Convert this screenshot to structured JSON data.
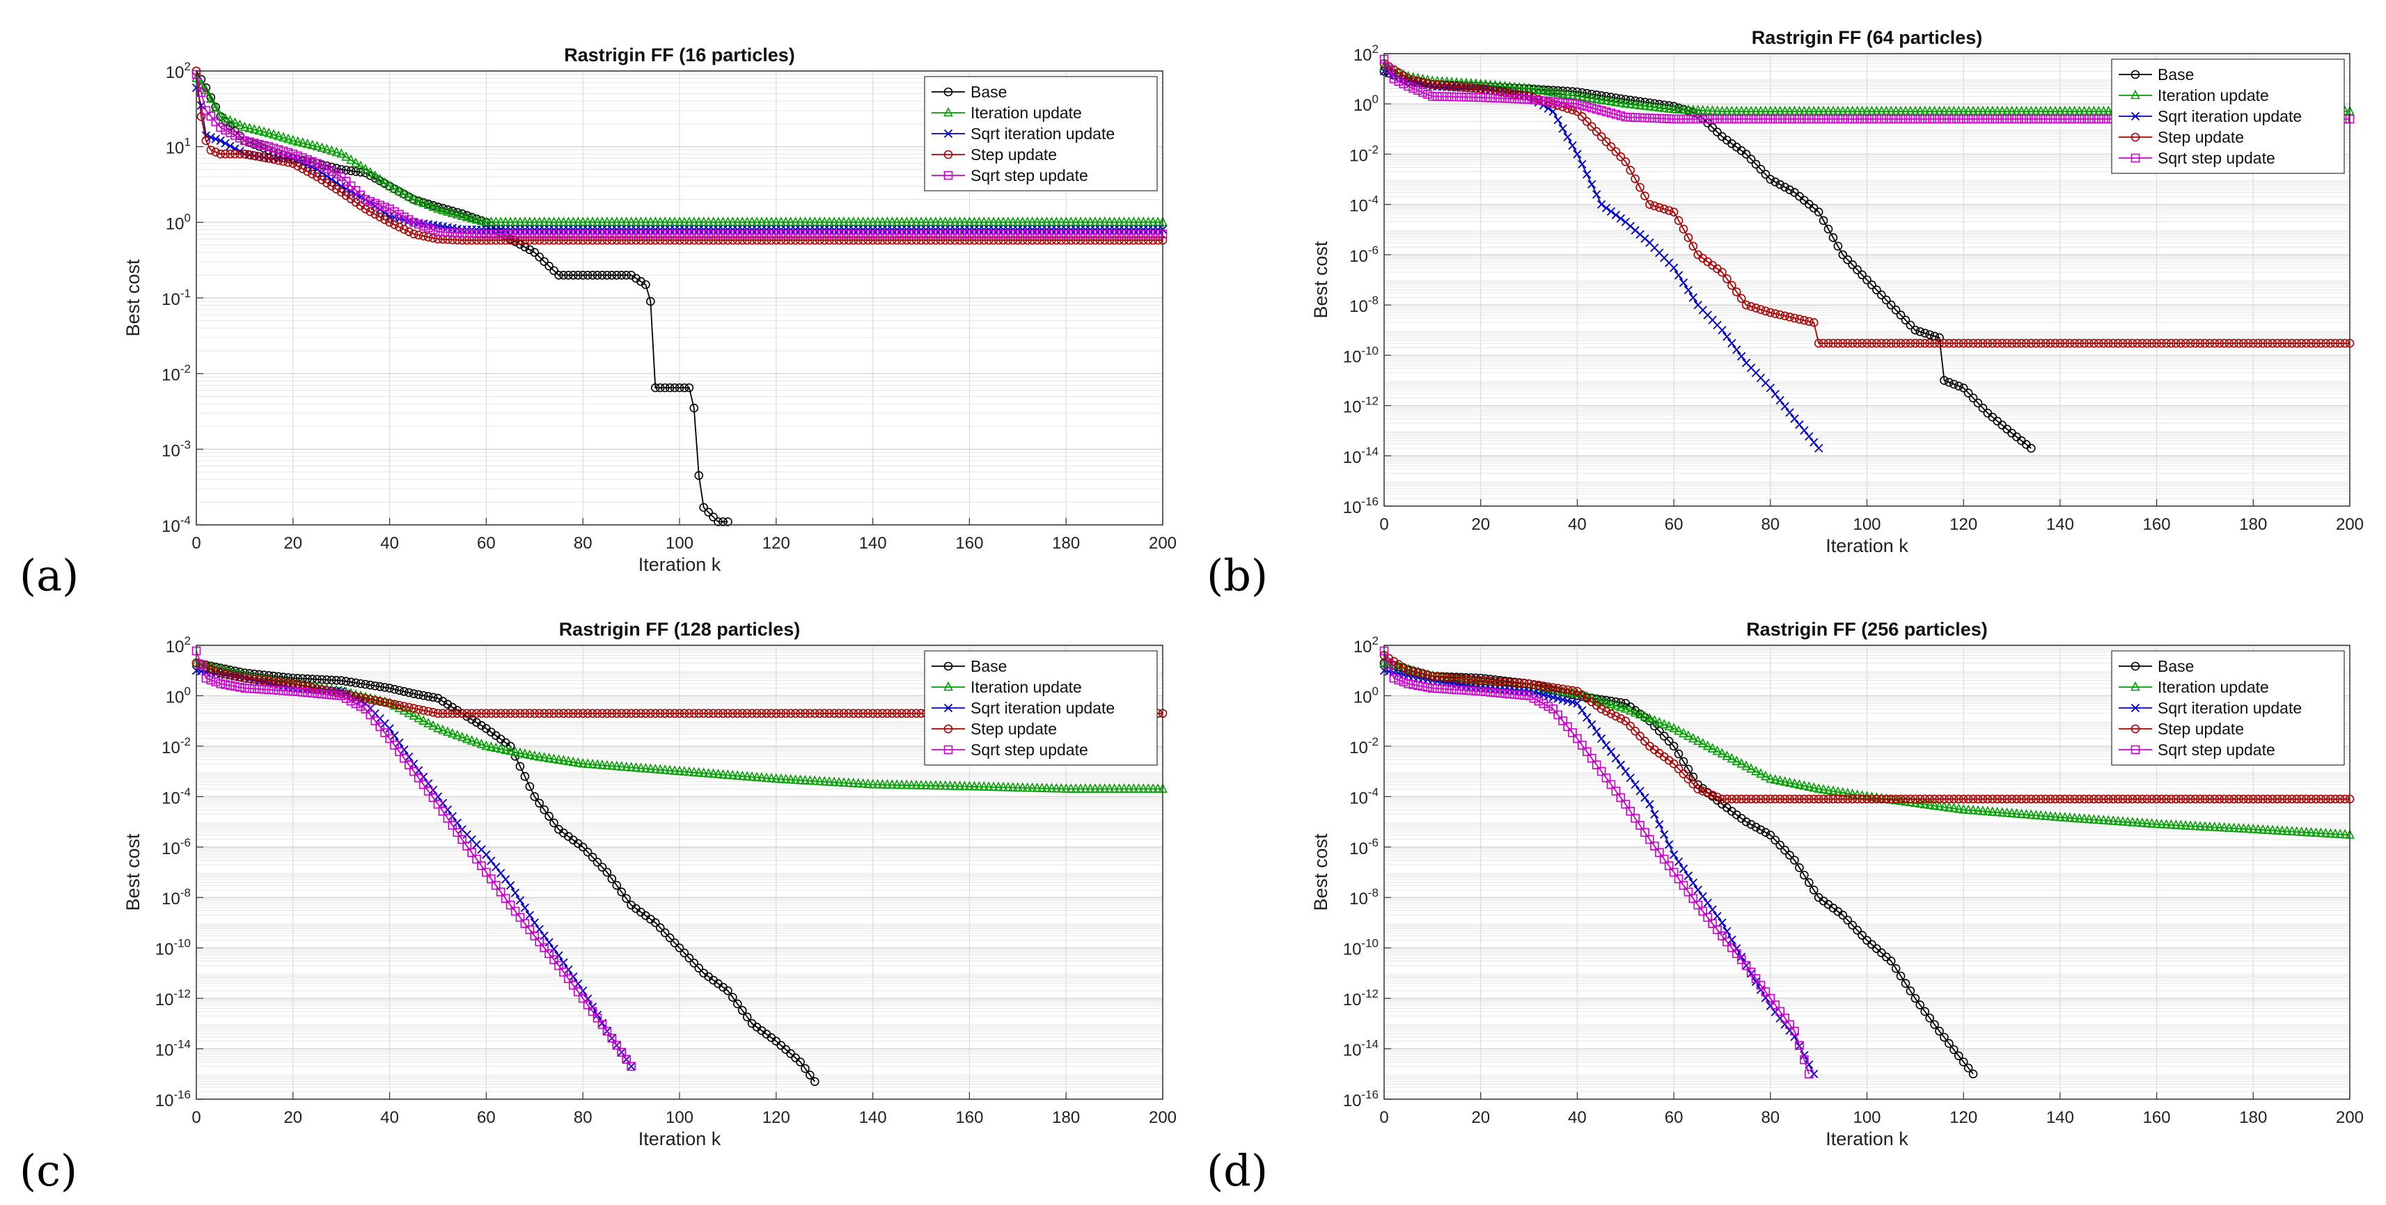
{
  "chart_data": [
    {
      "type": "line",
      "label": "(a)",
      "title": "Rastrigin FF (16 particles)",
      "xlabel": "Iteration  k",
      "ylabel": "Best cost",
      "xlim": [
        0,
        200
      ],
      "ylim": [
        0.0001,
        100
      ],
      "yscale": "log",
      "xticks": [
        "0",
        "20",
        "40",
        "60",
        "80",
        "100",
        "120",
        "140",
        "160",
        "180",
        "200"
      ],
      "yticks": [
        "10^-4",
        "10^-3",
        "10^-2",
        "10^-1",
        "10^0",
        "10^1",
        "10^2"
      ],
      "grid": true,
      "legend": "top-right",
      "series": [
        {
          "name": "Base",
          "color": "#000000",
          "marker": "circle",
          "x": [
            0,
            2,
            5,
            10,
            15,
            20,
            25,
            30,
            35,
            40,
            45,
            50,
            55,
            60,
            65,
            70,
            75,
            80,
            85,
            90,
            93,
            94,
            95,
            100,
            102,
            103,
            104,
            105,
            108,
            110
          ],
          "y": [
            100,
            60,
            25,
            12,
            9,
            7,
            6,
            5,
            4.5,
            3,
            2,
            1.6,
            1.3,
            1.0,
            0.6,
            0.4,
            0.2,
            0.2,
            0.2,
            0.2,
            0.15,
            0.09,
            0.0065,
            0.0065,
            0.0065,
            0.0035,
            0.00045,
            0.00017,
            0.00011,
            0.00011
          ]
        },
        {
          "name": "Iteration update",
          "color": "#00a000",
          "marker": "triangle",
          "x": [
            0,
            2,
            5,
            10,
            15,
            20,
            25,
            30,
            35,
            40,
            45,
            50,
            55,
            60,
            80,
            100,
            120,
            140,
            160,
            180,
            200
          ],
          "y": [
            80,
            55,
            25,
            18,
            15,
            12,
            10,
            8,
            5,
            3,
            2,
            1.5,
            1.2,
            1.0,
            1.0,
            1.0,
            1.0,
            1.0,
            1.0,
            1.0,
            1.0
          ]
        },
        {
          "name": "Sqrt iteration update",
          "color": "#0000cc",
          "marker": "x",
          "x": [
            0,
            1,
            2,
            5,
            10,
            15,
            20,
            25,
            30,
            35,
            40,
            45,
            50,
            55,
            60,
            80,
            100,
            120,
            140,
            160,
            180,
            200
          ],
          "y": [
            60,
            35,
            14,
            12,
            8,
            7,
            7,
            5,
            3,
            2,
            1.2,
            1.0,
            0.9,
            0.8,
            0.8,
            0.8,
            0.8,
            0.8,
            0.8,
            0.8,
            0.8,
            0.8
          ]
        },
        {
          "name": "Step update",
          "color": "#aa0000",
          "marker": "circle",
          "x": [
            0,
            1,
            2,
            3,
            5,
            10,
            15,
            20,
            25,
            30,
            35,
            40,
            45,
            50,
            55,
            60,
            80,
            100,
            120,
            140,
            160,
            180,
            200
          ],
          "y": [
            100,
            25,
            12,
            9,
            8,
            8,
            7,
            6,
            4,
            2.5,
            1.5,
            1.0,
            0.7,
            0.6,
            0.58,
            0.58,
            0.58,
            0.58,
            0.58,
            0.58,
            0.58,
            0.58,
            0.58
          ]
        },
        {
          "name": "Sqrt step update",
          "color": "#cc00cc",
          "marker": "square",
          "x": [
            0,
            2,
            5,
            10,
            15,
            20,
            25,
            30,
            35,
            40,
            45,
            50,
            55,
            60,
            80,
            100,
            120,
            140,
            160,
            180,
            200
          ],
          "y": [
            90,
            30,
            18,
            12,
            10,
            8,
            6,
            4,
            2,
            1.5,
            1.0,
            0.75,
            0.72,
            0.7,
            0.7,
            0.7,
            0.7,
            0.7,
            0.7,
            0.7,
            0.7
          ]
        }
      ]
    },
    {
      "type": "line",
      "label": "(b)",
      "title": "Rastrigin FF (64 particles)",
      "xlabel": "Iteration  k",
      "ylabel": "Best cost",
      "xlim": [
        0,
        200
      ],
      "ylim": [
        1e-16,
        100
      ],
      "yscale": "log",
      "xticks": [
        "0",
        "20",
        "40",
        "60",
        "80",
        "100",
        "120",
        "140",
        "160",
        "180",
        "200"
      ],
      "yticks": [
        "10^-16",
        "10^-14",
        "10^-12",
        "10^-10",
        "10^-8",
        "10^-6",
        "10^-4",
        "10^-2",
        "10^0",
        "10^2"
      ],
      "grid": true,
      "legend": "top-right",
      "series": [
        {
          "name": "Base",
          "color": "#000000",
          "marker": "circle",
          "x": [
            0,
            5,
            10,
            20,
            30,
            40,
            50,
            60,
            65,
            70,
            75,
            80,
            85,
            90,
            95,
            100,
            105,
            110,
            115,
            116,
            120,
            125,
            130,
            134
          ],
          "y": [
            20,
            8,
            6,
            5,
            4,
            3,
            1.5,
            0.8,
            0.4,
            0.05,
            0.01,
            0.001,
            0.0003,
            5e-05,
            1e-06,
            1e-07,
            1e-08,
            1e-09,
            5e-10,
            1e-11,
            5e-12,
            5e-13,
            8e-14,
            2e-14
          ]
        },
        {
          "name": "Iteration update",
          "color": "#00a000",
          "marker": "triangle",
          "x": [
            0,
            5,
            10,
            20,
            30,
            40,
            50,
            60,
            70,
            80,
            100,
            120,
            140,
            160,
            180,
            200
          ],
          "y": [
            30,
            12,
            8,
            6,
            4,
            2,
            1.0,
            0.6,
            0.5,
            0.5,
            0.5,
            0.5,
            0.5,
            0.5,
            0.5,
            0.5
          ]
        },
        {
          "name": "Sqrt iteration update",
          "color": "#0000cc",
          "marker": "x",
          "x": [
            0,
            5,
            10,
            20,
            30,
            35,
            40,
            45,
            50,
            55,
            60,
            65,
            70,
            75,
            80,
            85,
            90
          ],
          "y": [
            20,
            8,
            5,
            4,
            2,
            0.5,
            0.01,
            0.0001,
            2e-05,
            3e-06,
            3e-07,
            1e-08,
            1e-09,
            5e-11,
            5e-12,
            3e-13,
            2e-14
          ]
        },
        {
          "name": "Step update",
          "color": "#aa0000",
          "marker": "circle",
          "x": [
            0,
            5,
            10,
            20,
            30,
            40,
            45,
            50,
            55,
            60,
            65,
            70,
            75,
            80,
            85,
            89,
            90,
            100,
            120,
            140,
            160,
            180,
            200
          ],
          "y": [
            40,
            10,
            6,
            4,
            2,
            0.5,
            0.05,
            0.005,
            0.0001,
            5e-05,
            1e-06,
            2e-07,
            1e-08,
            5e-09,
            3e-09,
            2e-09,
            3e-10,
            3e-10,
            3e-10,
            3e-10,
            3e-10,
            3e-10,
            3e-10
          ]
        },
        {
          "name": "Sqrt step update",
          "color": "#cc00cc",
          "marker": "square",
          "x": [
            0,
            2,
            5,
            10,
            20,
            30,
            40,
            50,
            60,
            80,
            100,
            120,
            140,
            160,
            180,
            200
          ],
          "y": [
            60,
            10,
            5,
            2,
            1.8,
            1.5,
            1.0,
            0.3,
            0.25,
            0.25,
            0.25,
            0.25,
            0.25,
            0.25,
            0.25,
            0.25
          ]
        }
      ]
    },
    {
      "type": "line",
      "label": "(c)",
      "title": "Rastrigin FF (128 particles)",
      "xlabel": "Iteration  k",
      "ylabel": "Best cost",
      "xlim": [
        0,
        200
      ],
      "ylim": [
        1e-16,
        100
      ],
      "yscale": "log",
      "xticks": [
        "0",
        "20",
        "40",
        "60",
        "80",
        "100",
        "120",
        "140",
        "160",
        "180",
        "200"
      ],
      "yticks": [
        "10^-16",
        "10^-14",
        "10^-12",
        "10^-10",
        "10^-8",
        "10^-6",
        "10^-4",
        "10^-2",
        "10^0",
        "10^2"
      ],
      "grid": true,
      "legend": "top-right",
      "series": [
        {
          "name": "Base",
          "color": "#000000",
          "marker": "circle",
          "x": [
            0,
            10,
            20,
            30,
            40,
            45,
            50,
            55,
            60,
            65,
            70,
            75,
            80,
            85,
            90,
            95,
            100,
            105,
            110,
            115,
            120,
            125,
            128
          ],
          "y": [
            20,
            8,
            5,
            4,
            2,
            1.2,
            0.8,
            0.2,
            0.05,
            0.01,
            0.0001,
            5e-06,
            1e-06,
            1e-07,
            5e-09,
            1e-09,
            1e-10,
            1e-11,
            2e-12,
            1e-13,
            2e-14,
            3e-15,
            5e-16
          ]
        },
        {
          "name": "Iteration update",
          "color": "#00a000",
          "marker": "triangle",
          "x": [
            0,
            10,
            20,
            30,
            40,
            50,
            60,
            70,
            80,
            100,
            120,
            140,
            160,
            180,
            200
          ],
          "y": [
            20,
            6,
            3,
            1.5,
            0.5,
            0.05,
            0.01,
            0.004,
            0.002,
            0.001,
            0.0005,
            0.0003,
            0.00025,
            0.0002,
            0.0002
          ]
        },
        {
          "name": "Sqrt iteration update",
          "color": "#0000cc",
          "marker": "x",
          "x": [
            0,
            10,
            20,
            30,
            35,
            40,
            45,
            50,
            55,
            60,
            65,
            70,
            75,
            80,
            85,
            90
          ],
          "y": [
            10,
            5,
            2,
            1.5,
            0.5,
            0.05,
            0.002,
            0.0001,
            5e-06,
            5e-07,
            3e-08,
            1e-09,
            5e-11,
            2e-12,
            5e-14,
            2e-15
          ]
        },
        {
          "name": "Step update",
          "color": "#aa0000",
          "marker": "circle",
          "x": [
            0,
            5,
            10,
            20,
            30,
            40,
            50,
            60,
            80,
            100,
            120,
            140,
            160,
            180,
            200
          ],
          "y": [
            20,
            8,
            5,
            3,
            1.2,
            0.5,
            0.2,
            0.2,
            0.2,
            0.2,
            0.2,
            0.2,
            0.2,
            0.2,
            0.2
          ]
        },
        {
          "name": "Sqrt step update",
          "color": "#cc00cc",
          "marker": "square",
          "x": [
            0,
            2,
            5,
            10,
            20,
            30,
            35,
            40,
            45,
            50,
            55,
            60,
            65,
            70,
            75,
            80,
            85,
            90
          ],
          "y": [
            60,
            5,
            3,
            2,
            1.5,
            1,
            0.3,
            0.02,
            0.001,
            5e-05,
            2e-06,
            1e-07,
            5e-09,
            3e-10,
            2e-11,
            1e-12,
            5e-14,
            2e-15
          ]
        }
      ]
    },
    {
      "type": "line",
      "label": "(d)",
      "title": "Rastrigin FF (256 particles)",
      "xlabel": "Iteration  k",
      "ylabel": "Best cost",
      "xlim": [
        0,
        200
      ],
      "ylim": [
        1e-16,
        100
      ],
      "yscale": "log",
      "xticks": [
        "0",
        "20",
        "40",
        "60",
        "80",
        "100",
        "120",
        "140",
        "160",
        "180",
        "200"
      ],
      "yticks": [
        "10^-16",
        "10^-14",
        "10^-12",
        "10^-10",
        "10^-8",
        "10^-6",
        "10^-4",
        "10^-2",
        "10^0",
        "10^2"
      ],
      "grid": true,
      "legend": "top-right",
      "series": [
        {
          "name": "Base",
          "color": "#000000",
          "marker": "circle",
          "x": [
            0,
            10,
            20,
            30,
            40,
            50,
            55,
            60,
            65,
            70,
            75,
            80,
            85,
            90,
            95,
            100,
            105,
            110,
            115,
            120,
            122
          ],
          "y": [
            20,
            6,
            5,
            3,
            1.0,
            0.5,
            0.1,
            0.01,
            0.0003,
            5e-05,
            1e-05,
            3e-06,
            3e-07,
            1e-08,
            2e-09,
            2e-10,
            3e-11,
            1e-12,
            5e-14,
            3e-15,
            1e-15
          ]
        },
        {
          "name": "Iteration update",
          "color": "#00a000",
          "marker": "triangle",
          "x": [
            0,
            10,
            20,
            30,
            40,
            50,
            60,
            70,
            80,
            90,
            100,
            120,
            140,
            160,
            180,
            200
          ],
          "y": [
            20,
            6,
            3,
            2,
            1.2,
            0.3,
            0.05,
            0.005,
            0.0005,
            0.0002,
            0.0001,
            3e-05,
            1.5e-05,
            8e-06,
            5e-06,
            3e-06
          ]
        },
        {
          "name": "Sqrt iteration update",
          "color": "#0000cc",
          "marker": "x",
          "x": [
            0,
            10,
            20,
            30,
            40,
            45,
            50,
            55,
            60,
            65,
            70,
            75,
            80,
            85,
            89
          ],
          "y": [
            10,
            4,
            2,
            1.5,
            0.5,
            0.02,
            0.001,
            5e-05,
            5e-07,
            2e-08,
            1e-09,
            2e-11,
            5e-13,
            3e-14,
            1e-15
          ]
        },
        {
          "name": "Step update",
          "color": "#aa0000",
          "marker": "circle",
          "x": [
            0,
            5,
            10,
            20,
            30,
            40,
            45,
            50,
            55,
            60,
            65,
            70,
            80,
            100,
            120,
            140,
            160,
            180,
            200
          ],
          "y": [
            40,
            10,
            6,
            4,
            3,
            1.5,
            0.3,
            0.1,
            0.01,
            0.002,
            0.0002,
            8e-05,
            8e-05,
            8e-05,
            8e-05,
            8e-05,
            8e-05,
            8e-05,
            8e-05
          ]
        },
        {
          "name": "Sqrt step update",
          "color": "#cc00cc",
          "marker": "square",
          "x": [
            0,
            2,
            5,
            10,
            20,
            30,
            35,
            40,
            45,
            50,
            55,
            60,
            65,
            70,
            75,
            80,
            85,
            88
          ],
          "y": [
            60,
            5,
            3,
            2,
            1.5,
            1,
            0.3,
            0.02,
            0.001,
            5e-05,
            2e-06,
            1e-07,
            5e-09,
            3e-10,
            2e-11,
            1e-12,
            5e-14,
            1e-15
          ]
        }
      ]
    }
  ]
}
